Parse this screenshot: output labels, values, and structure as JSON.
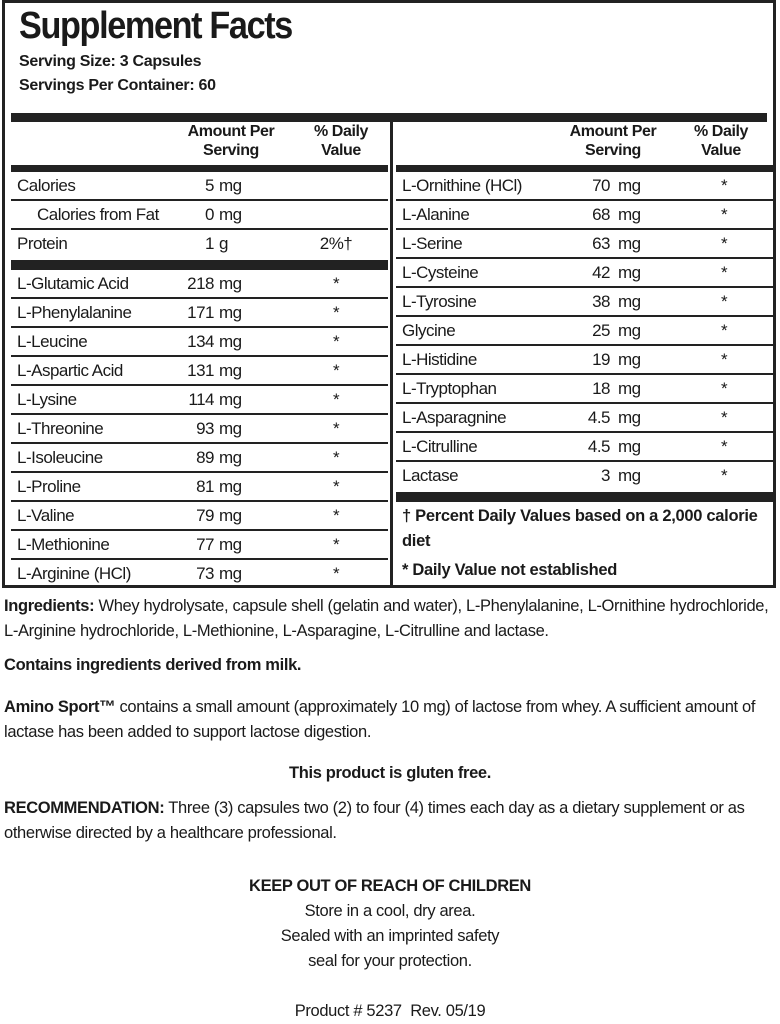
{
  "title": "Supplement Facts",
  "serving_size": "Serving Size: 3 Capsules",
  "servings_per_container": "Servings Per Container: 60",
  "headers": {
    "amount": [
      "Amount Per",
      "Serving"
    ],
    "daily": [
      "% Daily",
      "Value"
    ]
  },
  "left_top": [
    {
      "name": "Calories",
      "amount": "5",
      "unit": "mg",
      "dv": ""
    },
    {
      "name": "Calories from Fat",
      "amount": "0",
      "unit": "mg",
      "dv": ""
    },
    {
      "name": "Protein",
      "amount": "1",
      "unit": "g",
      "dv": "2%†"
    }
  ],
  "left_rows": [
    {
      "name": "L-Glutamic Acid",
      "amount": "218",
      "unit": "mg",
      "dv": "*"
    },
    {
      "name": "L-Phenylalanine",
      "amount": "171",
      "unit": "mg",
      "dv": "*"
    },
    {
      "name": "L-Leucine",
      "amount": "134",
      "unit": "mg",
      "dv": "*"
    },
    {
      "name": "L-Aspartic Acid",
      "amount": "131",
      "unit": "mg",
      "dv": "*"
    },
    {
      "name": "L-Lysine",
      "amount": "114",
      "unit": "mg",
      "dv": "*"
    },
    {
      "name": "L-Threonine",
      "amount": "93",
      "unit": "mg",
      "dv": "*"
    },
    {
      "name": "L-Isoleucine",
      "amount": "89",
      "unit": "mg",
      "dv": "*"
    },
    {
      "name": "L-Proline",
      "amount": "81",
      "unit": "mg",
      "dv": "*"
    },
    {
      "name": "L-Valine",
      "amount": "79",
      "unit": "mg",
      "dv": "*"
    },
    {
      "name": "L-Methionine",
      "amount": "77",
      "unit": "mg",
      "dv": "*"
    },
    {
      "name": "L-Arginine (HCl)",
      "amount": "73",
      "unit": "mg",
      "dv": "*"
    }
  ],
  "right_rows": [
    {
      "name": "L-Ornithine (HCl)",
      "amount": "70",
      "unit": "mg",
      "dv": "*"
    },
    {
      "name": "L-Alanine",
      "amount": "68",
      "unit": "mg",
      "dv": "*"
    },
    {
      "name": "L-Serine",
      "amount": "63",
      "unit": "mg",
      "dv": "*"
    },
    {
      "name": "L-Cysteine",
      "amount": "42",
      "unit": "mg",
      "dv": "*"
    },
    {
      "name": "L-Tyrosine",
      "amount": "38",
      "unit": "mg",
      "dv": "*"
    },
    {
      "name": "Glycine",
      "amount": "25",
      "unit": "mg",
      "dv": "*"
    },
    {
      "name": "L-Histidine",
      "amount": "19",
      "unit": "mg",
      "dv": "*"
    },
    {
      "name": "L-Tryptophan",
      "amount": "18",
      "unit": "mg",
      "dv": "*"
    },
    {
      "name": "L-Asparagnine",
      "amount": "4.5",
      "unit": "mg",
      "dv": "*"
    },
    {
      "name": "L-Citrulline",
      "amount": "4.5",
      "unit": "mg",
      "dv": "*"
    },
    {
      "name": "Lactase",
      "amount": "3",
      "unit": "mg",
      "dv": "*"
    }
  ],
  "footnotes": [
    "† Percent Daily Values based on a 2,000 calorie diet",
    "* Daily Value not established"
  ],
  "ingredients": {
    "label": "Ingredients:",
    "text": " Whey hydrolysate, capsule shell (gelatin and water), L-Phenylalanine, L-Ornithine hydrochloride, L-Arginine hydrochloride, L-Methionine, L-Asparagine, L-Citrulline and lactase."
  },
  "allergen": "Contains ingredients derived from milk.",
  "lactose": {
    "label": "Amino Sport™",
    "text": " contains a small amount (approximately 10 mg) of lactose from whey. A sufficient amount of lactase has been added to support lactose digestion."
  },
  "gluten": "This product is gluten free.",
  "recommendation": {
    "label": "RECOMMENDATION:",
    "text": " Three (3) capsules two (2) to four (4) times each day as a dietary supplement or as otherwise directed by a healthcare professional."
  },
  "warning": "KEEP OUT OF REACH OF CHILDREN",
  "storage": [
    "Store in a cool, dry area.",
    "Sealed with an imprinted safety",
    "seal for your protection."
  ],
  "product": "Product # 5237  Rev. 05/19"
}
